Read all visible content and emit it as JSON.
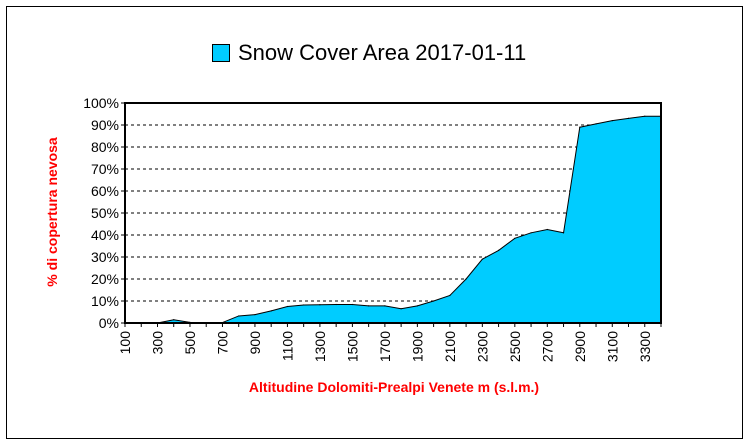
{
  "chart_data": {
    "type": "area",
    "title": "Snow Cover Area 2017-01-11",
    "xlabel": "Altitudine Dolomiti-Prealpi Venete m (s.l.m.)",
    "ylabel": "% di copertura nevosa",
    "x_tick_labels": [
      "100",
      "300",
      "500",
      "700",
      "900",
      "1100",
      "1300",
      "1500",
      "1700",
      "1900",
      "2100",
      "2300",
      "2500",
      "2700",
      "2900",
      "3100",
      "3300"
    ],
    "y_tick_labels": [
      "0%",
      "10%",
      "20%",
      "30%",
      "40%",
      "50%",
      "60%",
      "70%",
      "80%",
      "90%",
      "100%"
    ],
    "xlim": [
      100,
      3400
    ],
    "ylim": [
      0,
      100
    ],
    "grid": "horizontal dashed",
    "legend": "top",
    "colors": {
      "fill": "#00ccff",
      "axis_title": "#ff0000"
    },
    "series": [
      {
        "name": "Snow Cover Area 2017-01-11",
        "x": [
          100,
          200,
          300,
          400,
          500,
          600,
          700,
          800,
          900,
          1000,
          1100,
          1200,
          1300,
          1400,
          1500,
          1600,
          1700,
          1800,
          1900,
          2000,
          2100,
          2200,
          2300,
          2400,
          2500,
          2600,
          2700,
          2800,
          2900,
          3000,
          3100,
          3200,
          3300,
          3400
        ],
        "values": [
          0,
          0,
          0,
          1.5,
          0.3,
          0.2,
          0.2,
          3.2,
          3.8,
          5.5,
          7.5,
          8.2,
          8.3,
          8.4,
          8.4,
          7.8,
          7.8,
          6.5,
          7.8,
          10,
          12.5,
          20,
          29,
          33,
          38.5,
          41,
          42.5,
          41,
          89,
          90.5,
          92,
          93,
          94,
          94
        ]
      }
    ]
  }
}
